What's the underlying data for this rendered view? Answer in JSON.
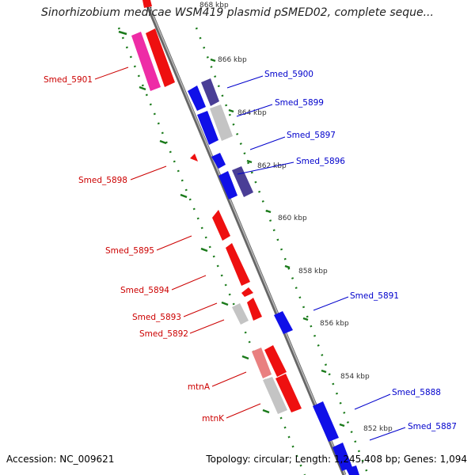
{
  "title": "Sinorhizobium medicae WSM419 plasmid pSMED02, complete seque...",
  "footer": {
    "accession": "Accession: NC_009621",
    "summary": "Topology: circular; Length: 1,245,408 bp; Genes: 1,094"
  },
  "colors": {
    "forward_strand": "#1010e8",
    "forward_strand_alt": "#4a3e96",
    "reverse_strand": "#ee1010",
    "reverse_strand_alt": "#ee2ca6",
    "reverse_strand_pale": "#e98080",
    "pseudo_gray": "#c4c4c4",
    "backbone": "#777777",
    "tick_green": "#1a7a1a",
    "label_blue": "#0000cc",
    "label_red": "#cc0000"
  },
  "scale_labels": [
    "868 kbp",
    "866 kbp",
    "864 kbp",
    "862 kbp",
    "860 kbp",
    "858 kbp",
    "856 kbp",
    "854 kbp",
    "852 kbp"
  ],
  "forward_genes": [
    "Smed_5900",
    "Smed_5899",
    "Smed_5897",
    "Smed_5896",
    "Smed_5891",
    "Smed_5888",
    "Smed_5887"
  ],
  "reverse_genes": [
    "Smed_5901",
    "Smed_5898",
    "Smed_5895",
    "Smed_5894",
    "Smed_5893",
    "Smed_5892",
    "mtnA",
    "mtnK"
  ]
}
